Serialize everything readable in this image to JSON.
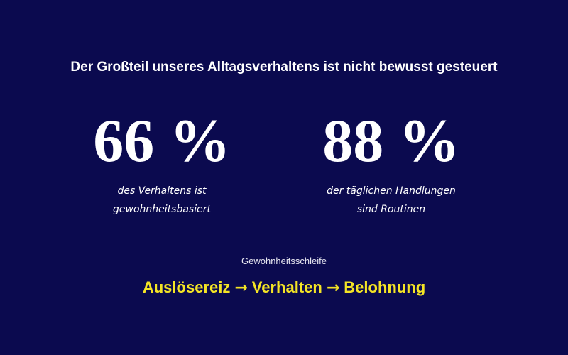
{
  "header": {
    "title": "Der Großteil unseres Alltagsverhaltens ist nicht bewusst gesteuert"
  },
  "stats": [
    {
      "value": "66 %",
      "caption": [
        "des Verhaltens ist",
        "gewohnheitsbasiert"
      ]
    },
    {
      "value": "88 %",
      "caption": [
        "der täglichen Handlungen",
        "sind Routinen"
      ]
    }
  ],
  "loop": {
    "label": "Gewohnheitsschleife",
    "steps": [
      "Auslösereiz",
      "Verhalten",
      "Belohnung"
    ]
  }
}
